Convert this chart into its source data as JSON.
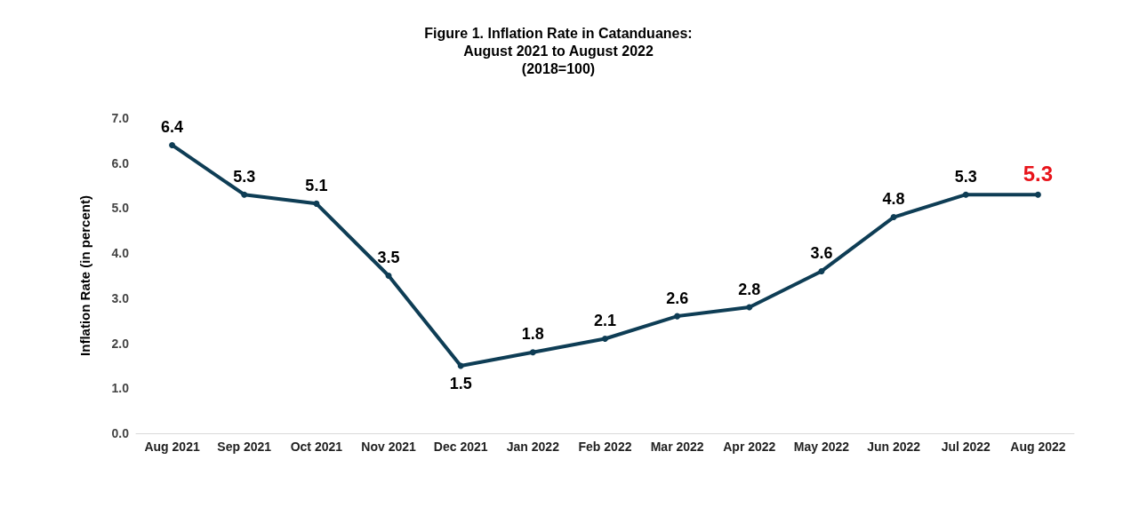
{
  "chart_data": {
    "type": "line",
    "title": "Figure 1. Inflation Rate in Catanduanes:\nAugust 2021 to August 2022\n(2018=100)",
    "ylabel": "Inflation Rate (in percent)",
    "categories": [
      "Aug 2021",
      "Sep 2021",
      "Oct 2021",
      "Nov 2021",
      "Dec 2021",
      "Jan 2022",
      "Feb 2022",
      "Mar 2022",
      "Apr 2022",
      "May 2022",
      "Jun 2022",
      "Jul 2022",
      "Aug 2022"
    ],
    "series": [
      {
        "color": "#0e3d55",
        "values": [
          6.4,
          5.3,
          5.1,
          3.5,
          1.5,
          1.8,
          2.1,
          2.6,
          2.8,
          3.6,
          4.8,
          5.3,
          5.3
        ]
      }
    ],
    "ylim": [
      0,
      7
    ],
    "yticks": [
      {
        "value": 0,
        "label": "0.0"
      },
      {
        "value": 1,
        "label": "1.0"
      },
      {
        "value": 2,
        "label": "2.0"
      },
      {
        "value": 3,
        "label": "3.0"
      },
      {
        "value": 4,
        "label": "4.0"
      },
      {
        "value": 5,
        "label": "5.0"
      },
      {
        "value": 6,
        "label": "6.0"
      },
      {
        "value": 7,
        "label": "7.0"
      }
    ],
    "grid": false,
    "marker": "circle",
    "line_style": "solid",
    "data_labels": true
  }
}
